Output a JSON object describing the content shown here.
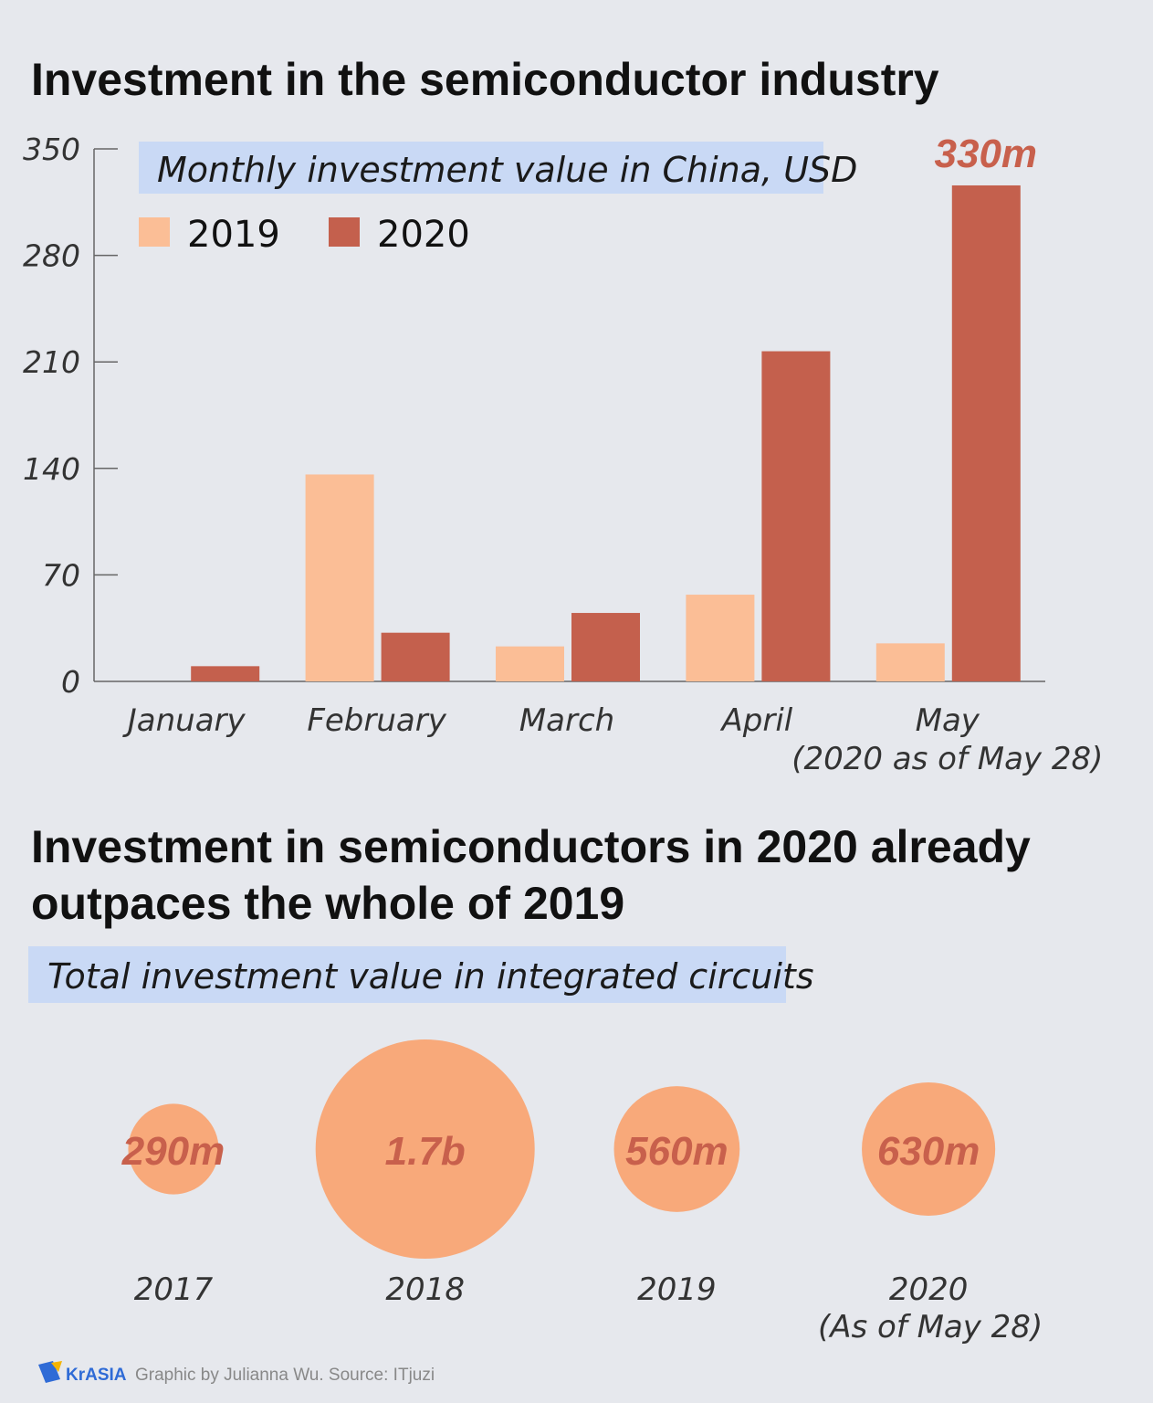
{
  "chart_data": [
    {
      "type": "bar",
      "title": "Investment in the semiconductor industry",
      "subtitle": "Monthly investment value in China, USD",
      "categories": [
        "January",
        "February",
        "March",
        "April",
        "May"
      ],
      "category_notes": {
        "May": "(2020 as of May 28)"
      },
      "series": [
        {
          "name": "2019",
          "values": [
            0,
            136,
            23,
            57,
            25
          ],
          "color": "#fbbe96"
        },
        {
          "name": "2020",
          "values": [
            10,
            32,
            45,
            217,
            326
          ],
          "color": "#c4604d"
        }
      ],
      "annotations": [
        {
          "category": "May",
          "series": "2020",
          "text": "330m"
        }
      ],
      "yticks": [
        0,
        70,
        140,
        210,
        280,
        350
      ],
      "ylim": [
        0,
        350
      ],
      "legend": "top-left",
      "grid": false
    },
    {
      "type": "bubble",
      "title": "Investment in semiconductors in 2020 already outpaces the whole of 2019",
      "subtitle": "Total investment value in integrated circuits",
      "categories": [
        "2017",
        "2018",
        "2019",
        "2020"
      ],
      "category_notes": {
        "2020": "(As of May 28)"
      },
      "values": [
        290000000,
        1700000000,
        560000000,
        630000000
      ],
      "labels": [
        "290m",
        "1.7b",
        "560m",
        "630m"
      ],
      "color": "#f8a97a"
    }
  ],
  "footer": {
    "logo": "KrASIA",
    "credit": "Graphic by Julianna Wu. Source: ITjuzi"
  }
}
